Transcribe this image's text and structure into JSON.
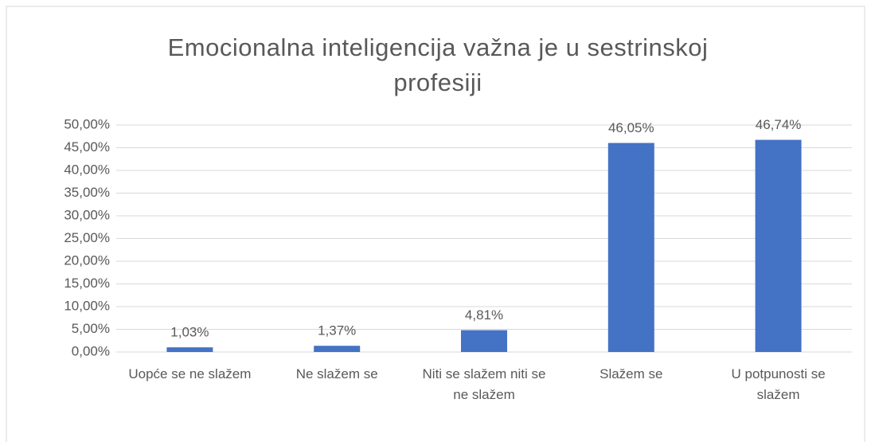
{
  "chart_data": {
    "type": "bar",
    "title": "Emocionalna inteligencija važna je u sestrinskoj profesiji",
    "categories": [
      "Uopće se ne slažem",
      "Ne slažem se",
      "Niti se slažem niti se ne slažem",
      "Slažem se",
      "U potpunosti se slažem"
    ],
    "values": [
      1.03,
      1.37,
      4.81,
      46.05,
      46.74
    ],
    "value_labels": [
      "1,03%",
      "1,37%",
      "4,81%",
      "46,05%",
      "46,74%"
    ],
    "color": "#4472c4",
    "ylim": [
      0,
      50
    ],
    "yticks": [
      {
        "value": 0,
        "label": "0,00%"
      },
      {
        "value": 5,
        "label": "5,00%"
      },
      {
        "value": 10,
        "label": "10,00%"
      },
      {
        "value": 15,
        "label": "15,00%"
      },
      {
        "value": 20,
        "label": "20,00%"
      },
      {
        "value": 25,
        "label": "25,00%"
      },
      {
        "value": 30,
        "label": "30,00%"
      },
      {
        "value": 35,
        "label": "35,00%"
      },
      {
        "value": 40,
        "label": "40,00%"
      },
      {
        "value": 45,
        "label": "45,00%"
      },
      {
        "value": 50,
        "label": "50,00%"
      }
    ],
    "grid": true
  }
}
